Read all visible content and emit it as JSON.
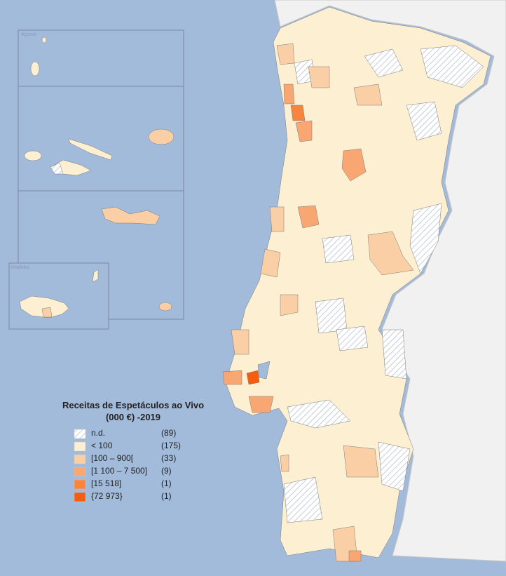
{
  "map": {
    "insets": {
      "azores": "Açores",
      "madeira": "Madeira"
    },
    "legend": {
      "title_line1": "Receitas de Espetáculos ao Vivo",
      "title_line2": "(000 €) -2019",
      "items": [
        {
          "label": "n.d.",
          "count": "(89)"
        },
        {
          "label": "< 100",
          "count": "(175)",
          "color": "#fdf0d2"
        },
        {
          "label": "[100 – 900[",
          "count": "(33)",
          "color": "#fbcfa6"
        },
        {
          "label": "[1 100 – 7 500]",
          "count": "(9)",
          "color": "#f9a772"
        },
        {
          "label": "[15 518]",
          "count": "(1)",
          "color": "#f7843f"
        },
        {
          "label": "{72 973}",
          "count": "(1)",
          "color": "#f55e10"
        }
      ]
    }
  }
}
